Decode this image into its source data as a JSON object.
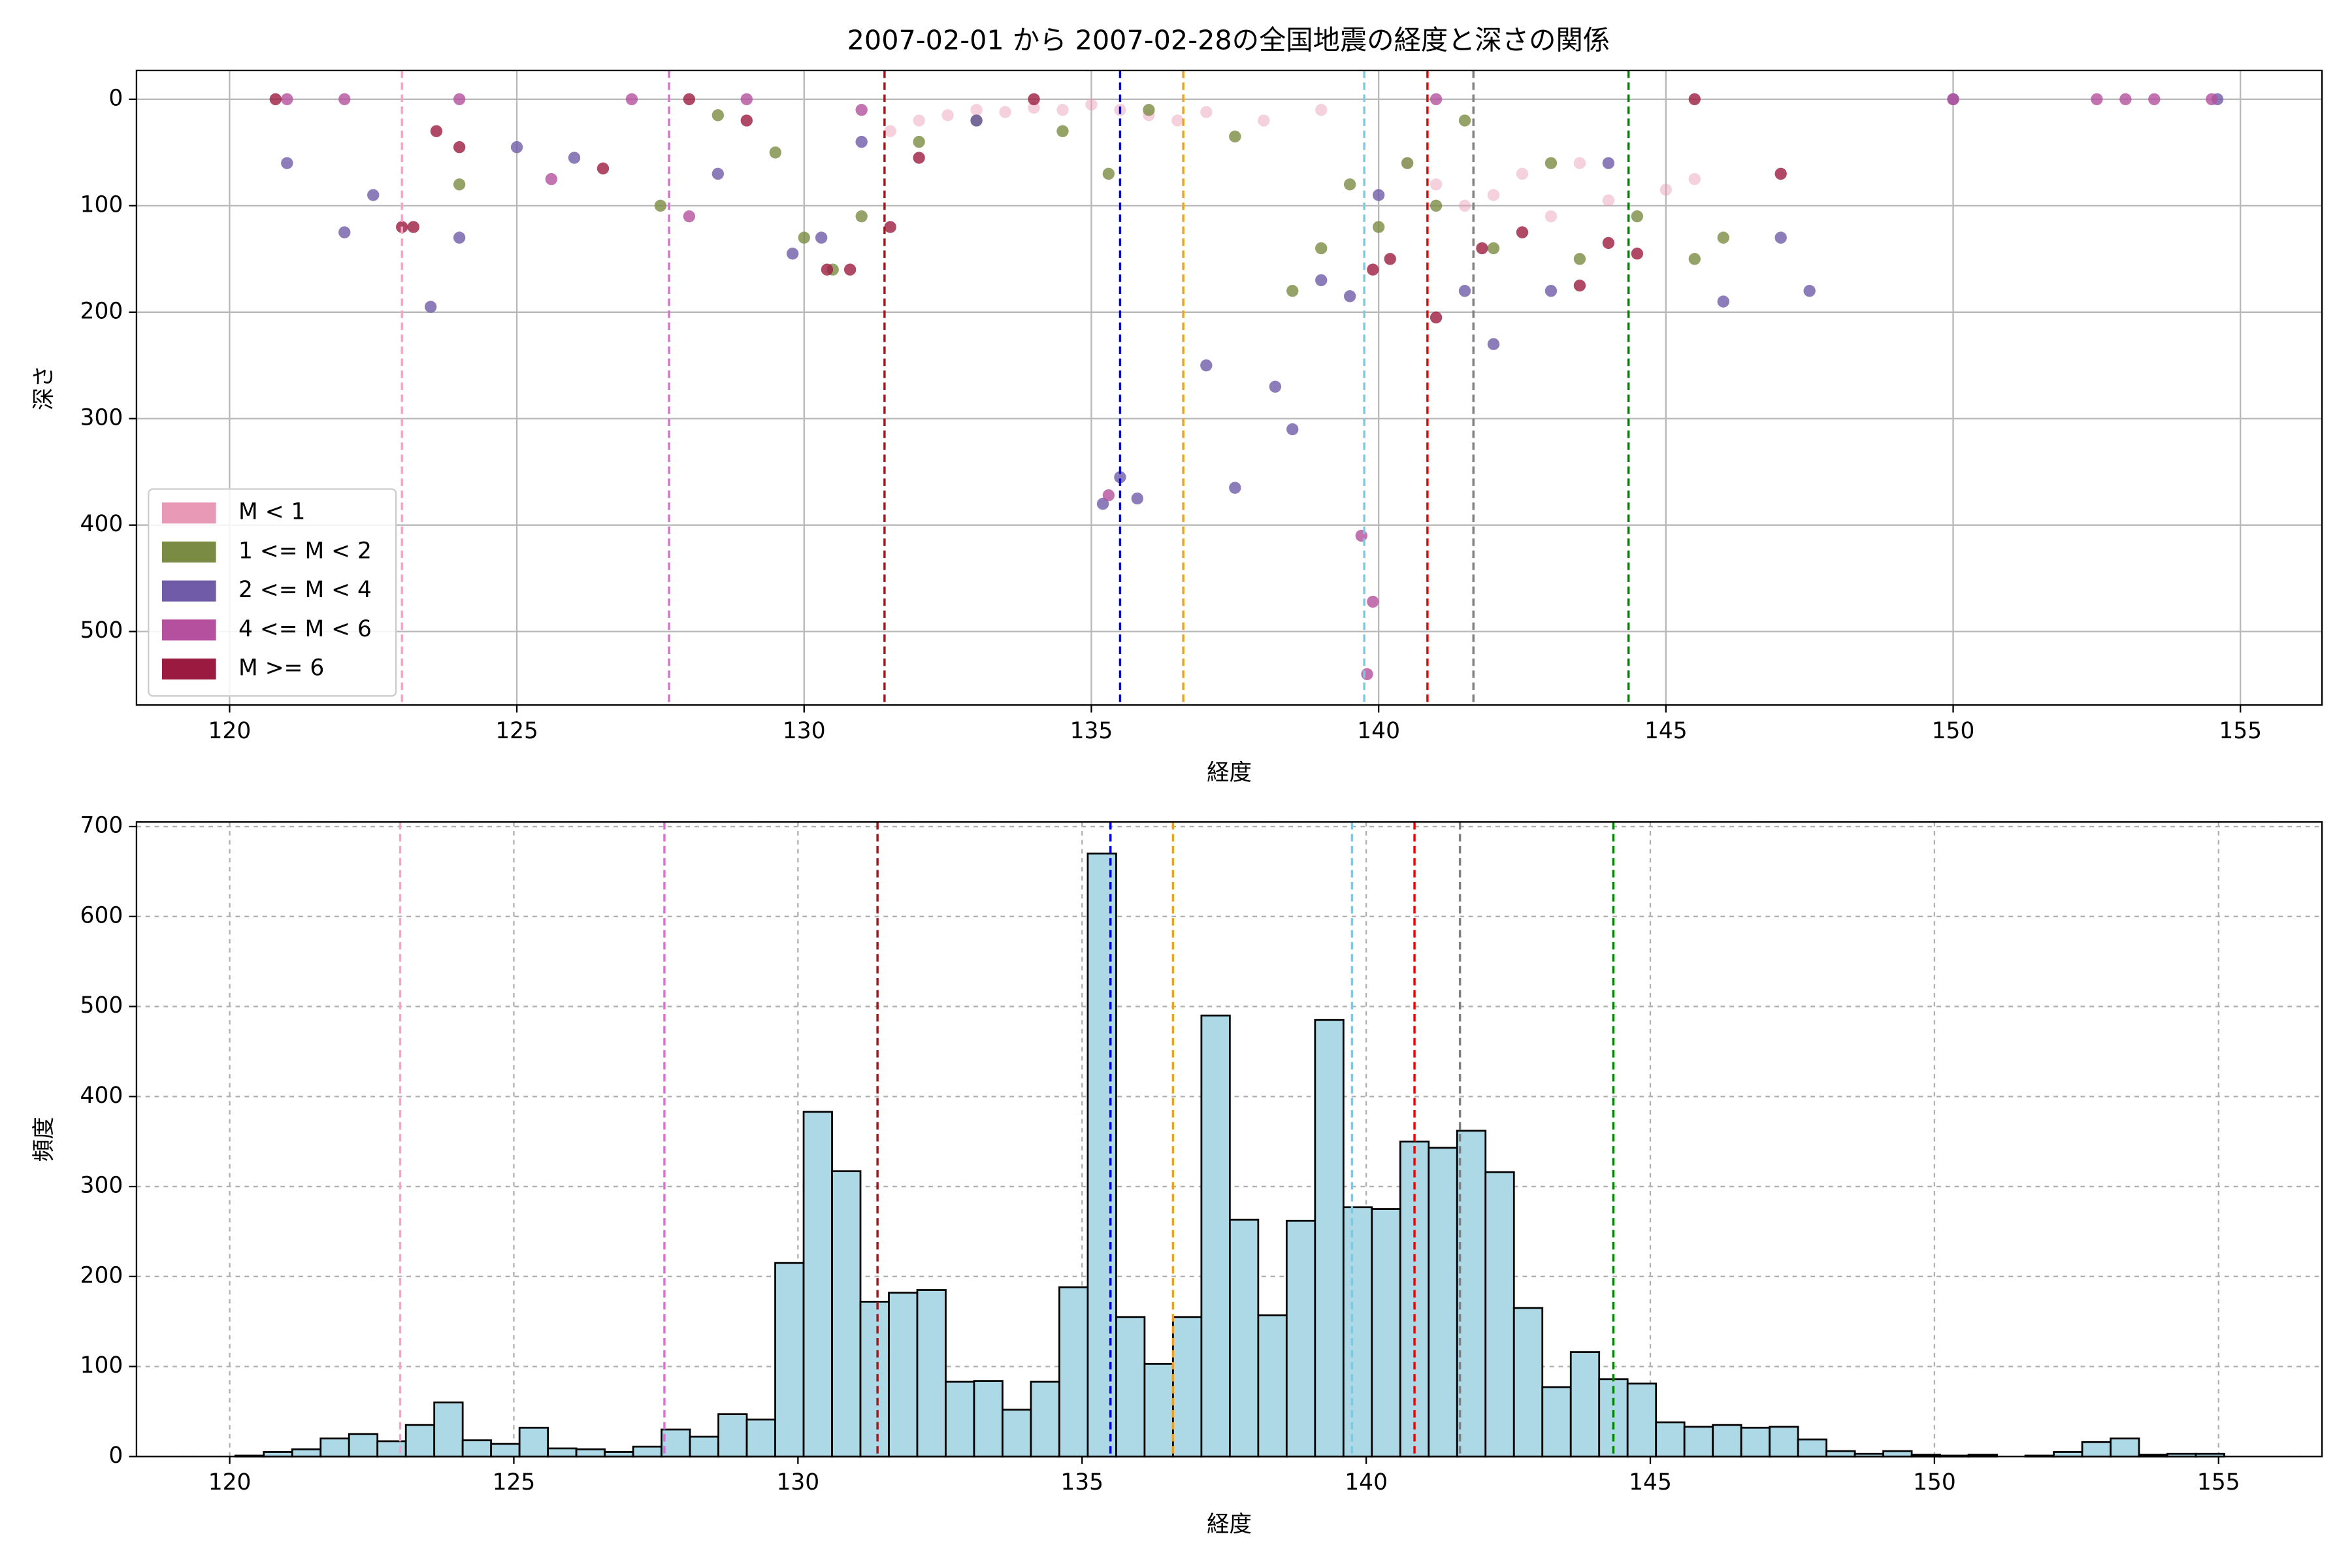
{
  "chart_data": [
    {
      "type": "scatter",
      "title": "2007-02-01 から 2007-02-28の全国地震の経度と深さの関係",
      "xlabel": "経度",
      "ylabel": "深さ",
      "xlim": [
        118.38,
        156.42
      ],
      "ylim": [
        569,
        -27
      ],
      "xticks": [
        120,
        125,
        130,
        135,
        140,
        145,
        150,
        155
      ],
      "yticks": [
        0,
        100,
        200,
        300,
        400,
        500
      ],
      "grid": "solid",
      "legend": "lower left",
      "series": [
        {
          "name": "M < 1",
          "color": "#e899b5",
          "x": [
            131.5,
            132,
            132.5,
            133,
            133.5,
            134,
            134.5,
            135,
            135.5,
            136,
            136.5,
            137,
            138,
            139,
            140.5,
            141,
            141.5,
            142,
            142.5,
            143,
            143.5,
            144,
            145,
            145.5
          ],
          "y": [
            30,
            20,
            15,
            10,
            12,
            8,
            10,
            5,
            10,
            15,
            20,
            12,
            20,
            10,
            60,
            80,
            100,
            90,
            70,
            110,
            60,
            95,
            85,
            75
          ]
        },
        {
          "name": "1 <= M < 2",
          "color": "#7a8c44",
          "x": [
            124,
            127.5,
            128.5,
            129.5,
            130,
            130.5,
            131,
            132,
            133,
            134.5,
            135.3,
            136,
            137.5,
            138.5,
            139,
            139.5,
            140,
            140.5,
            141,
            141.5,
            142,
            143,
            143.5,
            144.5,
            145.5,
            146
          ],
          "y": [
            80,
            100,
            15,
            50,
            130,
            160,
            110,
            40,
            20,
            30,
            70,
            10,
            35,
            180,
            140,
            80,
            120,
            60,
            100,
            20,
            140,
            60,
            150,
            110,
            150,
            130
          ]
        },
        {
          "name": "2 <= M < 4",
          "color": "#6f5ba8",
          "x": [
            121,
            122,
            122.5,
            123.5,
            124,
            125,
            126,
            128.5,
            129.8,
            130.3,
            131,
            133,
            135.2,
            135.5,
            135.8,
            137,
            137.5,
            138.2,
            138.5,
            139,
            139.5,
            140,
            141.5,
            142,
            143,
            144,
            146,
            147,
            147.5,
            150,
            154.6
          ],
          "y": [
            60,
            125,
            90,
            195,
            130,
            45,
            55,
            70,
            145,
            130,
            40,
            20,
            380,
            355,
            375,
            250,
            365,
            270,
            310,
            170,
            185,
            90,
            180,
            230,
            180,
            60,
            190,
            130,
            180,
            0,
            0
          ]
        },
        {
          "name": "4 <= M < 6",
          "color": "#b5509e",
          "x": [
            121,
            122,
            124,
            125.6,
            127,
            128,
            129,
            131,
            135.3,
            139.7,
            139.8,
            139.9,
            141,
            150,
            152.5,
            153,
            153.5,
            154.5
          ],
          "y": [
            0,
            0,
            0,
            75,
            0,
            110,
            0,
            10,
            372,
            410,
            540,
            472,
            0,
            0,
            0,
            0,
            0,
            0
          ]
        },
        {
          "name": "M >= 6",
          "color": "#9b1b40",
          "x": [
            120.8,
            123,
            123.2,
            123.6,
            124,
            126.5,
            128,
            129,
            130.4,
            130.8,
            131.5,
            132,
            134,
            139.9,
            140.2,
            141,
            141.8,
            142.5,
            143.5,
            144,
            144.5,
            145.5,
            147
          ],
          "y": [
            0,
            120,
            120,
            30,
            45,
            65,
            0,
            20,
            160,
            160,
            120,
            55,
            0,
            160,
            150,
            205,
            140,
            125,
            175,
            135,
            145,
            0,
            70
          ]
        }
      ],
      "vlines": [
        {
          "x": 123.0,
          "color": "#f4a6c8"
        },
        {
          "x": 127.65,
          "color": "#da70d6"
        },
        {
          "x": 131.4,
          "color": "#a0161c"
        },
        {
          "x": 135.5,
          "color": "#0000dd"
        },
        {
          "x": 136.6,
          "color": "#f0a020"
        },
        {
          "x": 139.75,
          "color": "#7ec8e0"
        },
        {
          "x": 140.85,
          "color": "#ee0000"
        },
        {
          "x": 141.65,
          "color": "#808080"
        },
        {
          "x": 144.35,
          "color": "#008000"
        }
      ]
    },
    {
      "type": "histogram",
      "xlabel": "経度",
      "ylabel": "頻度",
      "xlim": [
        118.36,
        156.82
      ],
      "ylim": [
        0,
        705
      ],
      "xticks": [
        120,
        125,
        130,
        135,
        140,
        145,
        150,
        155
      ],
      "yticks": [
        0,
        100,
        200,
        300,
        400,
        500,
        600,
        700
      ],
      "grid": "dashed",
      "color": "#add8e6",
      "bins": [
        120.1,
        120.6,
        121.1,
        121.6,
        122.1,
        122.6,
        123.1,
        123.6,
        124.1,
        124.6,
        125.1,
        125.6,
        126.1,
        126.6,
        127.1,
        127.6,
        128.1,
        128.6,
        129.1,
        129.6,
        130.1,
        130.6,
        131.1,
        131.6,
        132.1,
        132.6,
        133.1,
        133.6,
        134.1,
        134.6,
        135.1,
        135.6,
        136.1,
        136.6,
        137.1,
        137.6,
        138.1,
        138.6,
        139.1,
        139.6,
        140.1,
        140.6,
        141.1,
        141.6,
        142.1,
        142.6,
        143.1,
        143.6,
        144.1,
        144.6,
        145.1,
        145.6,
        146.1,
        146.6,
        147.1,
        147.6,
        148.1,
        148.6,
        149.1,
        149.6,
        150.1,
        150.6,
        151.1,
        151.6,
        152.1,
        152.6,
        153.1,
        153.6,
        154.1,
        154.6,
        155.1
      ],
      "counts": [
        1,
        5,
        8,
        20,
        25,
        17,
        35,
        60,
        18,
        14,
        32,
        9,
        8,
        5,
        11,
        30,
        22,
        47,
        41,
        215,
        383,
        317,
        172,
        182,
        185,
        83,
        84,
        52,
        83,
        188,
        670,
        155,
        103,
        155,
        490,
        263,
        157,
        262,
        485,
        277,
        275,
        350,
        343,
        362,
        316,
        165,
        77,
        116,
        86,
        81,
        38,
        33,
        35,
        32,
        33,
        19,
        6,
        3,
        6,
        2,
        1,
        2,
        0,
        1,
        5,
        16,
        20,
        2,
        3,
        3
      ],
      "vlines": [
        {
          "x": 123.0,
          "color": "#f4a6c8"
        },
        {
          "x": 127.65,
          "color": "#da70d6"
        },
        {
          "x": 131.4,
          "color": "#a0161c"
        },
        {
          "x": 135.5,
          "color": "#0000dd"
        },
        {
          "x": 136.6,
          "color": "#f0a020"
        },
        {
          "x": 139.75,
          "color": "#7ec8e0"
        },
        {
          "x": 140.85,
          "color": "#ee0000"
        },
        {
          "x": 141.65,
          "color": "#808080"
        },
        {
          "x": 144.35,
          "color": "#008000"
        }
      ]
    }
  ]
}
